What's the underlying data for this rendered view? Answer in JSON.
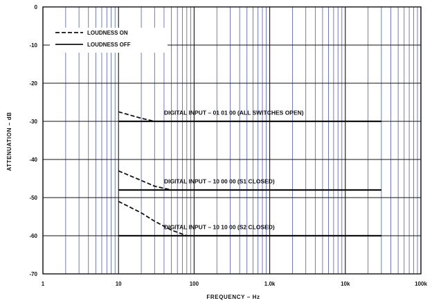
{
  "chart_data": {
    "type": "line",
    "xlabel": "FREQUENCY – Hz",
    "ylabel": "ATTENUATION – dB",
    "x_scale": "log",
    "xlim": [
      1,
      100000
    ],
    "ylim": [
      -70,
      0
    ],
    "x_ticks": [
      {
        "value": 1,
        "label": "1"
      },
      {
        "value": 10,
        "label": "10"
      },
      {
        "value": 100,
        "label": "100"
      },
      {
        "value": 1000,
        "label": "1.0k"
      },
      {
        "value": 10000,
        "label": "10k"
      },
      {
        "value": 100000,
        "label": "100k"
      }
    ],
    "y_ticks": [
      {
        "value": 0,
        "label": "0"
      },
      {
        "value": -10,
        "label": "-10"
      },
      {
        "value": -20,
        "label": "-20"
      },
      {
        "value": -30,
        "label": "-30"
      },
      {
        "value": -40,
        "label": "-40"
      },
      {
        "value": -50,
        "label": "-50"
      },
      {
        "value": -60,
        "label": "-60"
      },
      {
        "value": -70,
        "label": "-70"
      }
    ],
    "grid": true,
    "grid_color": "#2b3fa8",
    "legend": {
      "placement": "top-left",
      "entries": [
        {
          "label": "LOUDNESS ON",
          "style": "dashed"
        },
        {
          "label": "LOUDNESS OFF",
          "style": "solid"
        }
      ]
    },
    "series": [
      {
        "label": "LOUDNESS OFF",
        "style": "solid",
        "x": [
          10,
          30000
        ],
        "y": [
          -30,
          -30
        ]
      },
      {
        "label": "LOUDNESS ON",
        "style": "dashed",
        "x": [
          10,
          20,
          30
        ],
        "y": [
          -27.5,
          -29.2,
          -30
        ]
      },
      {
        "label": "LOUDNESS OFF",
        "style": "solid",
        "x": [
          10,
          30000
        ],
        "y": [
          -48,
          -48
        ]
      },
      {
        "label": "LOUDNESS ON",
        "style": "dashed",
        "x": [
          10,
          20,
          30,
          50
        ],
        "y": [
          -43,
          -45.5,
          -47,
          -48
        ]
      },
      {
        "label": "LOUDNESS OFF",
        "style": "solid",
        "x": [
          10,
          30000
        ],
        "y": [
          -60,
          -60
        ]
      },
      {
        "label": "LOUDNESS ON",
        "style": "dashed",
        "x": [
          10,
          20,
          30,
          50,
          80
        ],
        "y": [
          -51,
          -54,
          -56.2,
          -58.5,
          -60
        ]
      }
    ],
    "annotations": [
      {
        "text": "DIGITAL INPUT – 01 01 00 (ALL SWITCHES OPEN)",
        "x": 40,
        "y": -28.3
      },
      {
        "text": "DIGITAL INPUT – 10 00 00 (S1 CLOSED)",
        "x": 40,
        "y": -46.3
      },
      {
        "text": "DIGITAL INPUT – 10 10 00 (S2 CLOSED)",
        "x": 40,
        "y": -58.3
      }
    ]
  }
}
